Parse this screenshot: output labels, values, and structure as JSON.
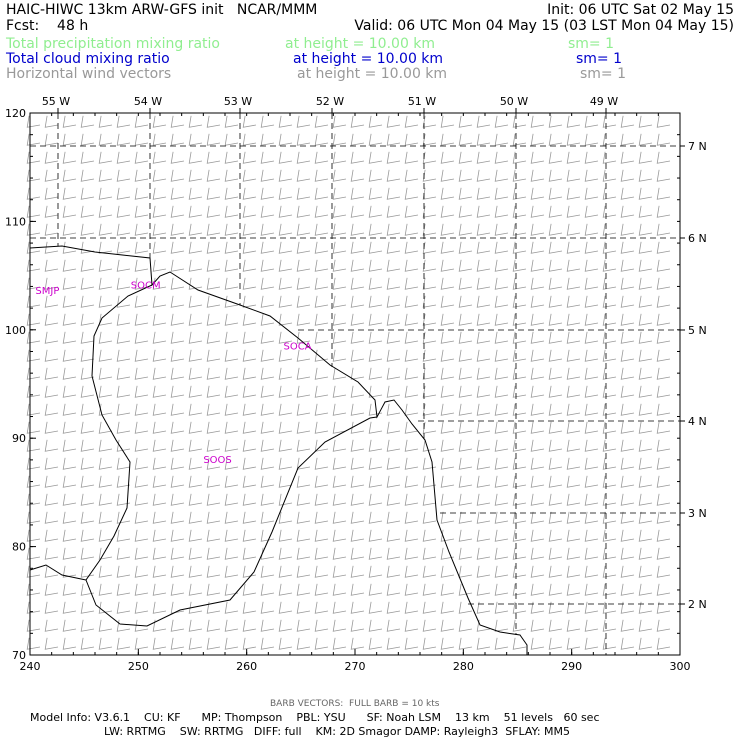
{
  "header": {
    "line1_left": "HAIC-HIWC 13km ARW-GFS init   NCAR/MMM",
    "line1_right": "Init: 06 UTC Sat 02 May 15",
    "fcst": "Fcst:    48 h",
    "valid": "Valid: 06 UTC Mon 04 May 15 (03 LST Mon 04 May 15)",
    "fields": [
      {
        "name": "Total precipitation mixing ratio",
        "height": "at height = 10.00 km",
        "sm": "sm= 1",
        "color": "#90ee90"
      },
      {
        "name": "Total cloud mixing ratio",
        "height": "at height = 10.00 km",
        "sm": "sm= 1",
        "color": "#0000cc"
      },
      {
        "name": "Horizontal wind vectors",
        "height": "at height = 10.00 km",
        "sm": "sm= 1",
        "color": "#999999"
      }
    ]
  },
  "map": {
    "x_axis": {
      "min": 240,
      "max": 300,
      "ticks": [
        "240",
        "250",
        "260",
        "270",
        "280",
        "290",
        "300"
      ]
    },
    "y_axis": {
      "min": 70,
      "max": 120,
      "ticks": [
        "70",
        "80",
        "90",
        "100",
        "110",
        "120"
      ]
    },
    "lon_labels": [
      "55 W",
      "54 W",
      "53 W",
      "52 W",
      "51 W",
      "50 W",
      "49 W"
    ],
    "lat_labels": [
      "2 N",
      "3 N",
      "4 N",
      "5 N",
      "6 N",
      "7 N"
    ],
    "stations": [
      {
        "id": "SMJP",
        "x": 240.5,
        "y": 103.3
      },
      {
        "id": "SOCM",
        "x": 249.3,
        "y": 103.8
      },
      {
        "id": "SOCA",
        "x": 263.4,
        "y": 98.2
      },
      {
        "id": "SOOS",
        "x": 256.0,
        "y": 87.7
      }
    ],
    "wind_barb_speed_kts": 10,
    "wind_direction_deg": 80,
    "barb_color": "#999999",
    "coast_color": "#000000"
  },
  "footer": {
    "barb_note": "BARB VECTORS:  FULL BARB = 10 kts",
    "line1": "Model Info: V3.6.1    CU: KF      MP: Thompson    PBL: YSU      SF: Noah LSM    13 km    51 levels   60 sec",
    "line2": "LW: RRTMG    SW: RRTMG   DIFF: full    KM: 2D Smagor DAMP: Rayleigh3  SFLAY: MM5"
  }
}
